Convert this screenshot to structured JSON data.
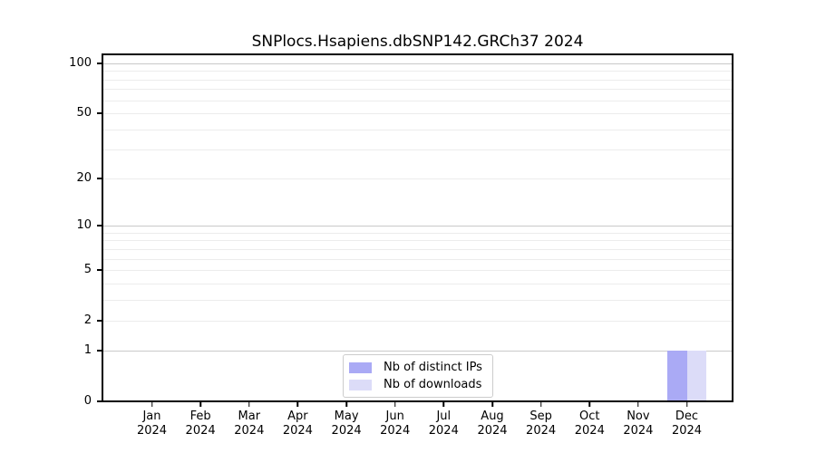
{
  "title": "SNPlocs.Hsapiens.dbSNP142.GRCh37 2024",
  "legend": {
    "items": [
      {
        "label": "Nb of distinct IPs",
        "color": "#aaaaf5"
      },
      {
        "label": "Nb of downloads",
        "color": "#dcdcf8"
      }
    ],
    "position": "lower center"
  },
  "chart_data": {
    "type": "bar",
    "title": "SNPlocs.Hsapiens.dbSNP142.GRCh37 2024",
    "categories": [
      "Jan 2024",
      "Feb 2024",
      "Mar 2024",
      "Apr 2024",
      "May 2024",
      "Jun 2024",
      "Jul 2024",
      "Aug 2024",
      "Sep 2024",
      "Oct 2024",
      "Nov 2024",
      "Dec 2024"
    ],
    "series": [
      {
        "name": "Nb of distinct IPs",
        "color": "#aaaaf5",
        "values": [
          0,
          0,
          0,
          0,
          0,
          0,
          0,
          0,
          0,
          0,
          0,
          1
        ]
      },
      {
        "name": "Nb of downloads",
        "color": "#dcdcf8",
        "values": [
          0,
          0,
          0,
          0,
          0,
          0,
          0,
          0,
          0,
          0,
          0,
          1
        ]
      }
    ],
    "xlabel": "",
    "ylabel": "",
    "yscale": "log1p",
    "ylim": [
      0,
      113
    ],
    "ytick_values": [
      100,
      50,
      20,
      10,
      5,
      2,
      1,
      0
    ],
    "grid_major": [
      1,
      10,
      100
    ],
    "grid_minor": [
      2,
      3,
      4,
      5,
      6,
      7,
      8,
      9,
      20,
      30,
      40,
      50,
      60,
      70,
      80,
      90
    ],
    "grid": "on",
    "legend_position": "lower center"
  },
  "colors": {
    "grid_major": "#c9c9c9",
    "grid_minor": "#ececec",
    "spine": "#000000",
    "legend_border": "#cccccc",
    "background": "#ffffff"
  }
}
